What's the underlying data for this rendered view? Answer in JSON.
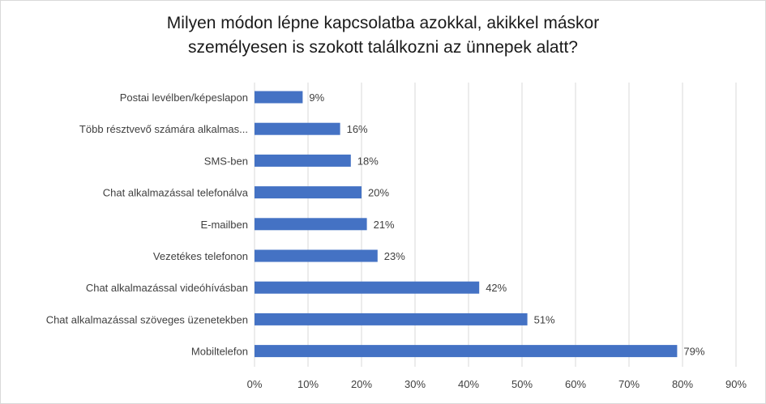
{
  "chart_data": {
    "type": "bar",
    "orientation": "horizontal",
    "title_lines": [
      "Milyen módon lépne kapcsolatba azokkal, akikkel máskor",
      "személyesen is szokott találkozni az ünnepek alatt?"
    ],
    "categories": [
      "Postai levélben/képeslapon",
      "Több résztvevő számára alkalmas...",
      "SMS-ben",
      "Chat alkalmazással telefonálva",
      "E-mailben",
      "Vezetékes telefonon",
      "Chat alkalmazással videóhívásban",
      "Chat alkalmazással szöveges üzenetekben",
      "Mobiltelefon"
    ],
    "values": [
      9,
      16,
      18,
      20,
      21,
      23,
      42,
      51,
      79
    ],
    "data_labels": [
      "9%",
      "16%",
      "18%",
      "20%",
      "21%",
      "23%",
      "42%",
      "51%",
      "79%"
    ],
    "xlim": [
      0,
      90
    ],
    "xticks": [
      "0%",
      "10%",
      "20%",
      "30%",
      "40%",
      "50%",
      "60%",
      "70%",
      "80%",
      "90%"
    ],
    "grid": "vertical",
    "legend": "none",
    "bar_color": "#4472c4"
  }
}
